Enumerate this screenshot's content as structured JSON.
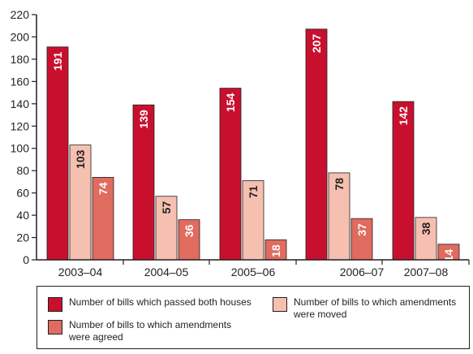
{
  "chart_data": {
    "type": "bar",
    "title": "",
    "xlabel": "",
    "ylabel": "",
    "ylim": [
      0,
      220
    ],
    "yticks": [
      0,
      20,
      40,
      60,
      80,
      100,
      120,
      140,
      160,
      180,
      200,
      220
    ],
    "categories": [
      "2003–04",
      "2004–05",
      "2005–06",
      "2006–07",
      "2007–08"
    ],
    "series": [
      {
        "name": "Number of bills which passed both houses",
        "values": [
          191,
          139,
          154,
          207,
          142
        ],
        "color": "#c8102e",
        "label_color": "#ffffff"
      },
      {
        "name": "Number of bills to which amendments\nwere moved",
        "values": [
          103,
          57,
          71,
          78,
          38
        ],
        "color": "#f5c0b0",
        "label_color": "#231f20"
      },
      {
        "name": "Number of bills to which amendments\nwere agreed",
        "values": [
          74,
          36,
          18,
          37,
          14
        ],
        "color": "#e06b5f",
        "label_color": "#ffffff"
      }
    ],
    "legend_position": "bottom",
    "grid": false
  }
}
